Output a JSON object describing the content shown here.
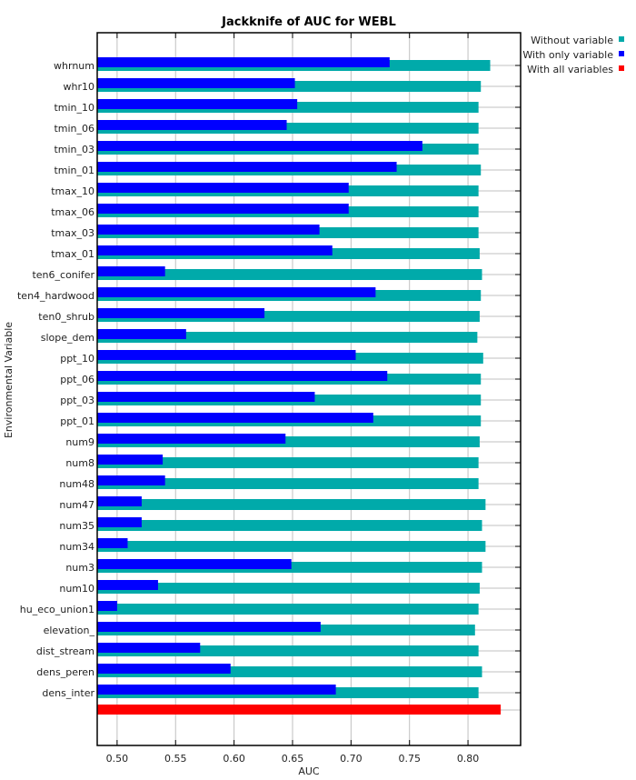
{
  "chart_data": {
    "type": "bar",
    "orientation": "horizontal",
    "title": "Jackknife of AUC for WEBL",
    "xlabel": "AUC",
    "ylabel": "Environmental Variable",
    "xlim": [
      0.483,
      0.845
    ],
    "xticks": [
      0.5,
      0.55,
      0.6,
      0.65,
      0.7,
      0.75,
      0.8
    ],
    "xtick_labels": [
      "0.50",
      "0.55",
      "0.60",
      "0.65",
      "0.70",
      "0.75",
      "0.80"
    ],
    "grid": true,
    "legend_position": "top-right",
    "colors": {
      "without": "#00aaaa",
      "only": "#0000ff",
      "all": "#ff0000"
    },
    "legend": [
      {
        "key": "without",
        "label": "Without variable"
      },
      {
        "key": "only",
        "label": "With only variable"
      },
      {
        "key": "all",
        "label": "With all variables"
      }
    ],
    "categories": [
      "whrnum",
      "whr10",
      "tmin_10",
      "tmin_06",
      "tmin_03",
      "tmin_01",
      "tmax_10",
      "tmax_06",
      "tmax_03",
      "tmax_01",
      "ten6_conifer",
      "ten4_hardwood",
      "ten0_shrub",
      "slope_dem",
      "ppt_10",
      "ppt_06",
      "ppt_03",
      "ppt_01",
      "num9",
      "num8",
      "num48",
      "num47",
      "num35",
      "num34",
      "num3",
      "num10",
      "hu_eco_union1",
      "elevation_",
      "dist_stream",
      "dens_peren",
      "dens_inter"
    ],
    "series": [
      {
        "name": "Without variable",
        "key": "without",
        "values": [
          0.819,
          0.811,
          0.809,
          0.809,
          0.809,
          0.811,
          0.809,
          0.809,
          0.809,
          0.81,
          0.812,
          0.811,
          0.81,
          0.808,
          0.813,
          0.811,
          0.811,
          0.811,
          0.81,
          0.809,
          0.809,
          0.815,
          0.812,
          0.815,
          0.812,
          0.81,
          0.809,
          0.806,
          0.809,
          0.812,
          0.809
        ]
      },
      {
        "name": "With only variable",
        "key": "only",
        "values": [
          0.733,
          0.652,
          0.654,
          0.645,
          0.761,
          0.739,
          0.698,
          0.698,
          0.673,
          0.684,
          0.541,
          0.721,
          0.626,
          0.559,
          0.704,
          0.731,
          0.669,
          0.719,
          0.644,
          0.539,
          0.541,
          0.521,
          0.521,
          0.509,
          0.649,
          0.535,
          0.5,
          0.674,
          0.571,
          0.597,
          0.687
        ]
      }
    ],
    "all_variables": {
      "name": "With all variables",
      "value": 0.828
    }
  }
}
